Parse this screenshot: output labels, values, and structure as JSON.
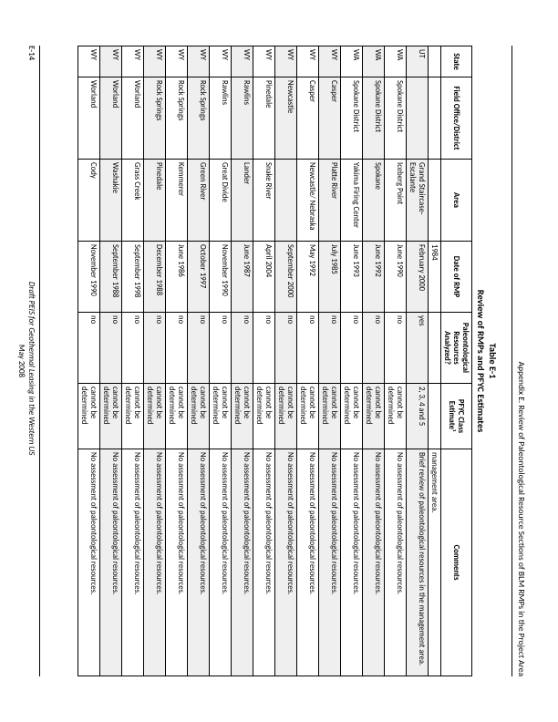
{
  "running_head": "Appendix E. Review of Paleontological Resource Sections of BLM RMPs in the Project Area",
  "table_label": "Table E-1",
  "table_title": "Review of RMPs and PFYC Estimates",
  "columns": {
    "state": "State",
    "office": "Field Office/District",
    "area": "Area",
    "date": "Date of RMP",
    "paleo": "Paleontological Resources Analyzed?",
    "pfyc": "PFYC Class Estimate¹",
    "comments": "Comments"
  },
  "rows": [
    {
      "shade": false,
      "state": "",
      "office": "",
      "area": "",
      "date": "1984",
      "paleo": "",
      "pfyc": "",
      "comments": "management area."
    },
    {
      "shade": true,
      "state": "UT",
      "office": "",
      "area": "Grand Staircase-Escalante",
      "date": "February 2000",
      "paleo": "yes",
      "pfyc": "2, 3, 4 and 5",
      "comments": "Brief review of paleontological resources in the management area."
    },
    {
      "shade": false,
      "state": "WA",
      "office": "Spokane District",
      "area": "Iceberg Point",
      "date": "June 1990",
      "paleo": "no",
      "pfyc": "cannot be determined",
      "comments": "No assessment of paleontological resources."
    },
    {
      "shade": true,
      "state": "WA",
      "office": "Spokane District",
      "area": "Spokane",
      "date": "June 1992",
      "paleo": "no",
      "pfyc": "cannot be determined",
      "comments": "No assessment of paleontological resources."
    },
    {
      "shade": false,
      "state": "WA",
      "office": "Spokane District",
      "area": "Yakima Firing Center",
      "date": "June 1993",
      "paleo": "no",
      "pfyc": "cannot be determined",
      "comments": "No assessment of paleontological resources."
    },
    {
      "shade": true,
      "state": "WY",
      "office": "Casper",
      "area": "Platte River",
      "date": "July 1985",
      "paleo": "no",
      "pfyc": "cannot be determined",
      "comments": "No assessment of paleontological resources."
    },
    {
      "shade": false,
      "state": "WY",
      "office": "Casper",
      "area": "Newcastle/ Nebraska",
      "date": "May 1992",
      "paleo": "no",
      "pfyc": "cannot be determined",
      "comments": "No assessment of paleontological resources."
    },
    {
      "shade": true,
      "state": "WY",
      "office": "Newcastle",
      "area": "",
      "date": "September 2000",
      "paleo": "no",
      "pfyc": "cannot be determined",
      "comments": "No assessment of paleontological resources."
    },
    {
      "shade": false,
      "state": "WY",
      "office": "Pinedale",
      "area": "Snake River",
      "date": "April 2004",
      "paleo": "no",
      "pfyc": "cannot be determined",
      "comments": "No assessment of paleontological resources."
    },
    {
      "shade": true,
      "state": "WY",
      "office": "Rawlins",
      "area": "Lander",
      "date": "June 1987",
      "paleo": "no",
      "pfyc": "cannot be determined",
      "comments": "No assessment of paleontological resources."
    },
    {
      "shade": false,
      "state": "WY",
      "office": "Rawlins",
      "area": "Great Divide",
      "date": "November 1990",
      "paleo": "no",
      "pfyc": "cannot be determined",
      "comments": "No assessment of paleontological resources."
    },
    {
      "shade": true,
      "state": "WY",
      "office": "Rock Springs",
      "area": "Green River",
      "date": "October 1997",
      "paleo": "no",
      "pfyc": "cannot be determined",
      "comments": "No assessment of paleontological resources."
    },
    {
      "shade": false,
      "state": "WY",
      "office": "Rock Springs",
      "area": "Kemmerer",
      "date": "June 1986",
      "paleo": "no",
      "pfyc": "cannot be determined",
      "comments": "No assessment of paleontological resources."
    },
    {
      "shade": true,
      "state": "WY",
      "office": "Rock Springs",
      "area": "Pinedale",
      "date": "December 1988",
      "paleo": "no",
      "pfyc": "cannot be determined",
      "comments": "No assessment of paleontological resources."
    },
    {
      "shade": false,
      "state": "WY",
      "office": "Worland",
      "area": "Grass Creek",
      "date": "September 1998",
      "paleo": "no",
      "pfyc": "cannot be determined",
      "comments": "No assessment of paleontological resources."
    },
    {
      "shade": true,
      "state": "WY",
      "office": "Worland",
      "area": "Washakie",
      "date": "September 1988",
      "paleo": "no",
      "pfyc": "cannot be determined",
      "comments": "No assessment of paleontological resources."
    },
    {
      "shade": false,
      "state": "WY",
      "office": "Worland",
      "area": "Cody",
      "date": "November 1990",
      "paleo": "no",
      "pfyc": "cannot be determined",
      "comments": "No assessment of paleontological resources."
    }
  ],
  "footer": {
    "page_num": "E-14",
    "line1": "Draft PEIS for Geothermal Leasing in the Western US",
    "line2": "May 2008"
  }
}
